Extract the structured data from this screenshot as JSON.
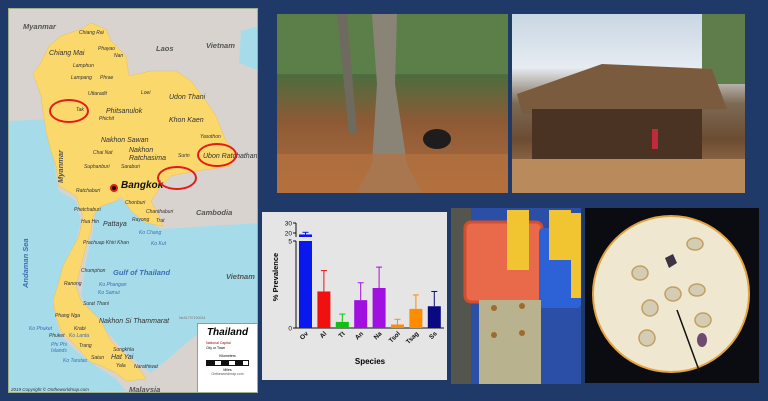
{
  "map": {
    "title": "Thailand",
    "legend": {
      "capital": "National Capital",
      "city": "City or Town",
      "km_label": "Kilometers",
      "km_ticks": [
        "0",
        "50",
        "100",
        "150"
      ],
      "mi_label": "Miles",
      "mi_ticks": [
        "0",
        "50",
        "100"
      ],
      "site": "Ontheworldmap.com"
    },
    "copyright": "2019 Copyright © Ontheworldmap.com",
    "code": "NeA1707190044",
    "watermark": "Ontheworldmap.com",
    "capital": "Bangkok",
    "countries": [
      "Myanmar",
      "Laos",
      "Vietnam",
      "Cambodia",
      "Vietnam",
      "Myanmar",
      "Malaysia"
    ],
    "seas": [
      "Gulf of Thailand",
      "Andaman Sea"
    ],
    "cities": [
      "Chiang Rai",
      "Phayao",
      "Nan",
      "Chiang Mai",
      "Lamphun",
      "Lampang",
      "Phrae",
      "Uttaradit",
      "Loei",
      "Udon Thani",
      "Tak",
      "Phitsanulok",
      "Phichit",
      "Khon Kaen",
      "Yasothon",
      "Nakhon Sawan",
      "Chai Nat",
      "Nakhon Ratchasima",
      "Surin",
      "Ubon Ratchathani",
      "Suphanburi",
      "Saraburi",
      "Ratchaburi",
      "Chonburi",
      "Phetchaburi",
      "Pattaya",
      "Rayong",
      "Chanthaburi",
      "Trat",
      "Hua Hin",
      "Prachuap Khiri Khan",
      "Chumphon",
      "Ranong",
      "Surat Thani",
      "Phang Nga",
      "Nakhon Si Thammarat",
      "Krabi",
      "Phuket",
      "Trang",
      "Songkhla",
      "Hat Yai",
      "Satun",
      "Yala",
      "Narathiwat"
    ],
    "islands": [
      "Ko Chang",
      "Ko Kut",
      "Ko Phangan",
      "Ko Samui",
      "Ko Phuket",
      "Ko Lanta",
      "Phi Phi Islands",
      "Ko Tarutao"
    ],
    "highlight_color": "#e31b1b"
  },
  "chart_data": {
    "type": "bar",
    "title": "",
    "xlabel": "Species",
    "ylabel": "% Prevalence",
    "categories": [
      "Ov",
      "Al",
      "Tt",
      "An",
      "Na",
      "Tsol",
      "Tsag",
      "Ss"
    ],
    "values": [
      17.3,
      2.1,
      0.35,
      1.6,
      2.3,
      0.2,
      1.1,
      1.25
    ],
    "error_upper": [
      20.7,
      3.3,
      0.8,
      2.6,
      3.5,
      0.5,
      1.9,
      2.1
    ],
    "colors": [
      "#0a18f0",
      "#f01010",
      "#10c010",
      "#a010e0",
      "#a010e0",
      "#ff8c00",
      "#ff8c00",
      "#0a0a80"
    ],
    "y_axis_break": true,
    "ylim_lower": [
      0,
      5
    ],
    "ylim_upper": [
      20,
      30
    ],
    "yticks": [
      "0",
      "5",
      "20",
      "30"
    ],
    "grid": false
  }
}
